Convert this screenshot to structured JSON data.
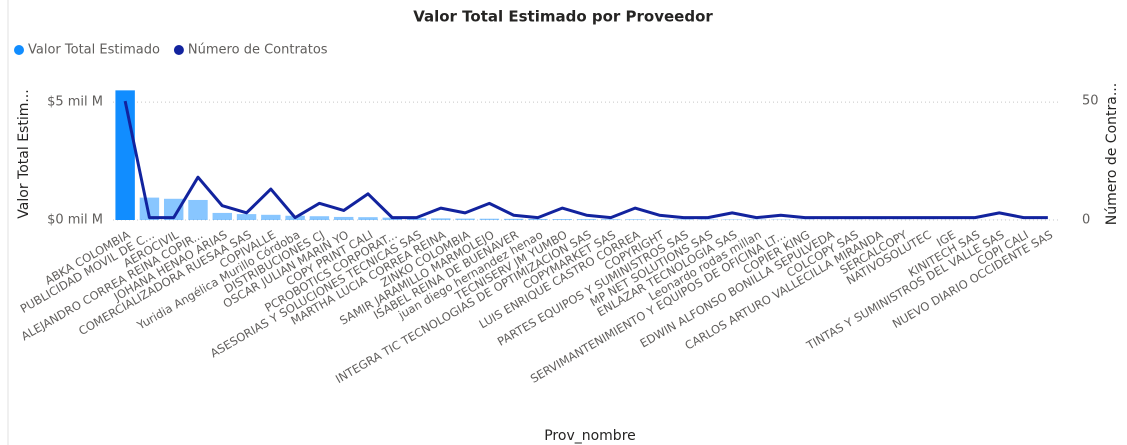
{
  "chart_data": {
    "type": "bar_line",
    "title": "Valor Total Estimado por Proveedor",
    "x_label": "Prov_nombre",
    "y_label": "Valor Total Estim...",
    "y2_label": "Número de Contra...",
    "selected": "ABKA COLOMBIA",
    "grid": true,
    "legend": "top-left",
    "categories": [
      "ABKA COLOMBIA",
      "PUBLICIDAD MOVIL DE C...",
      "AEROCIVIL",
      "ALEJANDRO CORREA REINA COPIR...",
      "JOHANA HENAO ARIAS",
      "COMERCIALIZADORA RUESAA SAS",
      "COPIVALLE",
      "Yuridia Angélica Murillo Córdoba",
      "DISTRIBUCIONES CJ",
      "OSCAR JULIAN MARIN YO",
      "COPY PRINT CALI",
      "PCROBOTICS CORPORAT...",
      "ASESORIAS Y SOLUCIONES TECNICAS SAS",
      "MARTHA LUCIA CORREA REINA",
      "ZINKO COLOMBIA",
      "SAMIR JARAMILLO MARMOLEJO",
      "ISABEL REINA DE BUENAVER",
      "juan diego hernandez henao",
      "TECNISERV JM YUMBO",
      "INTEGRA TIC TECNOLOGIAS DE OPTIMIZACION SAS",
      "COPYMARKET SAS",
      "LUIS ENRIQUE CASTRO CORREA",
      "COPYRIGHT",
      "PARTES EQUIPOS Y SUMINISTROS SAS",
      "MP NET SOLUTIONS SAS",
      "ENLAZAR TECNOLOGIA SAS",
      "Leonardo rodas millan",
      "SERVIMANTENIMIENTO Y EQUIPOS DE OFICINA LT...",
      "COPIER KING",
      "EDWIN ALFONSO BONILLA SEPULVEDA",
      "COLCOPY SAS",
      "CARLOS ARTURO VALLECILLA MIRANDA",
      "SERCALCOPY",
      "NATIVOSOLUTEC",
      "IGE",
      "KINITECH SAS",
      "TINTAS Y SUMINISTROS DEL VALLE SAS",
      "COPI CALI",
      "NUEVO DIARIO OCCIDENTE SAS"
    ],
    "series": [
      {
        "name": "Valor Total Estimado",
        "type": "bar",
        "color": "#118DFF",
        "values": [
          5500000000,
          950000000,
          900000000,
          850000000,
          300000000,
          250000000,
          220000000,
          180000000,
          160000000,
          130000000,
          120000000,
          100000000,
          80000000,
          70000000,
          60000000,
          55000000,
          50000000,
          45000000,
          40000000,
          35000000,
          30000000,
          28000000,
          25000000,
          22000000,
          20000000,
          18000000,
          16000000,
          14000000,
          12000000,
          10000000,
          9000000,
          8000000,
          7000000,
          6000000,
          5000000,
          4000000,
          3000000,
          2000000,
          1000000
        ]
      },
      {
        "name": "Número de Contratos",
        "type": "line",
        "axis": "y2",
        "color": "#12239E",
        "values": [
          50,
          1,
          1,
          18,
          6,
          3,
          13,
          1,
          7,
          4,
          11,
          1,
          1,
          5,
          3,
          7,
          2,
          1,
          5,
          2,
          1,
          5,
          2,
          1,
          1,
          3,
          1,
          2,
          1,
          1,
          1,
          1,
          1,
          1,
          1,
          1,
          3,
          1,
          1
        ]
      }
    ],
    "ylim": [
      0,
      5600000000
    ],
    "yticks": [
      {
        "value": 0,
        "label": "$0 mil M"
      },
      {
        "value": 5000000000,
        "label": "$5 mil M"
      }
    ],
    "y2lim": [
      0,
      55.5
    ],
    "y2ticks": [
      0,
      50
    ]
  }
}
